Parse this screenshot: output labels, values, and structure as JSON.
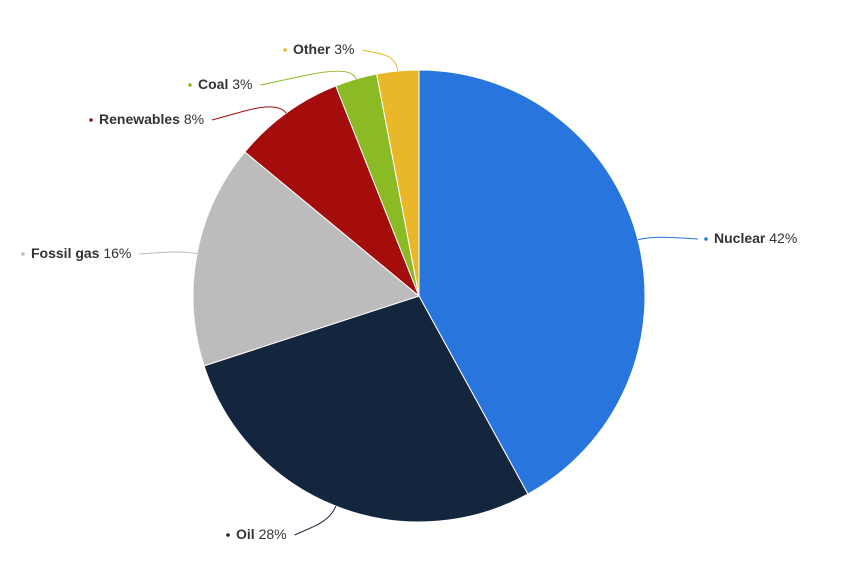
{
  "chart_data": {
    "type": "pie",
    "categories": [
      "Nuclear",
      "Oil",
      "Fossil gas",
      "Renewables",
      "Coal",
      "Other"
    ],
    "values": [
      42,
      28,
      16,
      8,
      3,
      3
    ],
    "value_labels": [
      "42%",
      "28%",
      "16%",
      "8%",
      "3%",
      "3%"
    ],
    "colors": [
      "#2876dd",
      "#13263d",
      "#bcbcbc",
      "#a50d0d",
      "#8aba24",
      "#eab72a"
    ]
  }
}
